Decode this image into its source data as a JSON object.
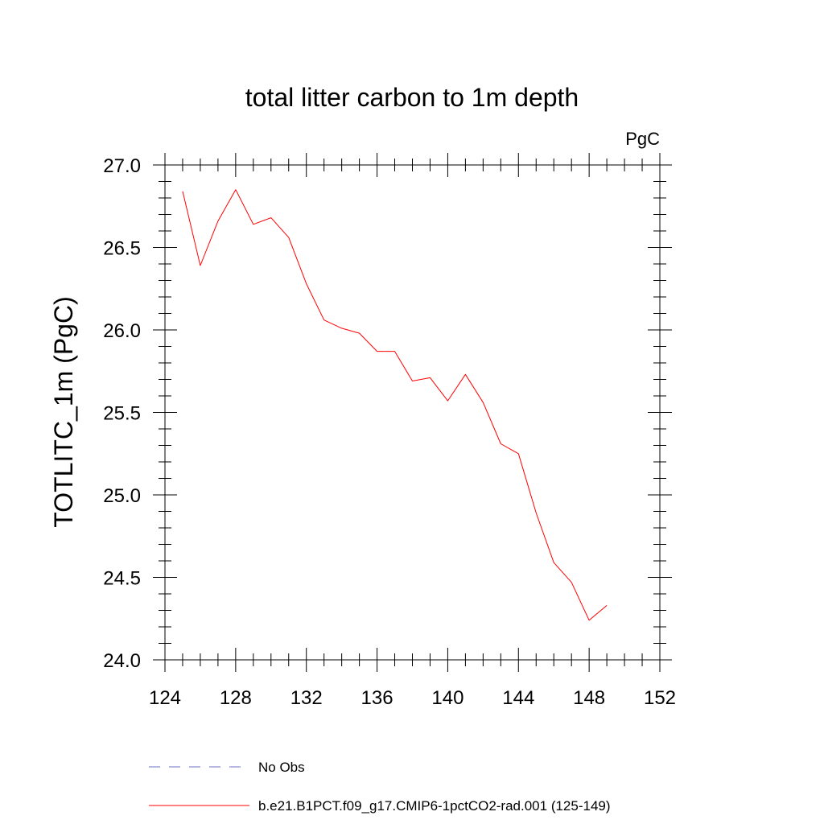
{
  "chart_data": {
    "type": "line",
    "title": "total litter carbon to 1m depth",
    "units": "PgC",
    "ylabel": "TOTLITC_1m  (PgC)",
    "xlabel": "",
    "xlim": [
      124,
      152
    ],
    "ylim": [
      24.0,
      27.0
    ],
    "xticks": [
      124,
      128,
      132,
      136,
      140,
      144,
      148,
      152
    ],
    "yticks": [
      "24.0",
      "24.5",
      "25.0",
      "25.5",
      "26.0",
      "26.5",
      "27.0"
    ],
    "grid": false,
    "legend_position": "bottom",
    "series": [
      {
        "name": "b.e21.B1PCT.f09_g17.CMIP6-1pctCO2-rad.001 (125-149)",
        "color": "#ff0000",
        "style": "solid",
        "x": [
          125,
          126,
          127,
          128,
          129,
          130,
          131,
          132,
          133,
          134,
          135,
          136,
          137,
          138,
          139,
          140,
          141,
          142,
          143,
          144,
          145,
          146,
          147,
          148,
          149
        ],
        "y": [
          26.84,
          26.39,
          26.66,
          26.85,
          26.64,
          26.68,
          26.56,
          26.28,
          26.06,
          26.01,
          25.98,
          25.87,
          25.87,
          25.69,
          25.71,
          25.57,
          25.73,
          25.56,
          25.31,
          25.25,
          24.89,
          24.59,
          24.47,
          24.24,
          24.33
        ]
      }
    ],
    "legend": [
      {
        "label": "No Obs",
        "color": "#6f6fc8",
        "style": "dashed"
      },
      {
        "label": "b.e21.B1PCT.f09_g17.CMIP6-1pctCO2-rad.001 (125-149)",
        "color": "#ff0000",
        "style": "solid"
      }
    ]
  }
}
